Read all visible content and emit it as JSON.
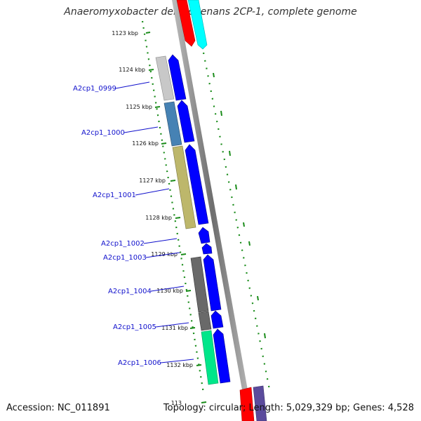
{
  "title": "Anaeromyxobacter dehalogenans 2CP-1, complete genome",
  "footer": {
    "accession": "Accession: NC_011891",
    "summary": "Topology: circular; Length: 5,029,329 bp; Genes: 4,528"
  },
  "ticks": [
    {
      "label": "1123 kbp"
    },
    {
      "label": "1124 kbp"
    },
    {
      "label": "1125 kbp"
    },
    {
      "label": "1126 kbp"
    },
    {
      "label": "1127 kbp"
    },
    {
      "label": "1128 kbp"
    },
    {
      "label": "1129 kbp"
    },
    {
      "label": "1130 kbp"
    },
    {
      "label": "1131 kbp"
    },
    {
      "label": "1132 kbp"
    },
    {
      "label": "113"
    }
  ],
  "genes": [
    {
      "name": "A2cp1_0999",
      "cog_color": "#c8c8c8"
    },
    {
      "name": "A2cp1_1000",
      "cog_color": "#4682b4"
    },
    {
      "name": "A2cp1_1001",
      "cog_color": "#bdb76b"
    },
    {
      "name": "A2cp1_1002",
      "cog_color": ""
    },
    {
      "name": "A2cp1_1003",
      "cog_color": ""
    },
    {
      "name": "A2cp1_1004",
      "cog_color": "#696969"
    },
    {
      "name": "A2cp1_1005",
      "cog_color": "#696969"
    },
    {
      "name": "A2cp1_1006",
      "cog_color": "#00e68a"
    }
  ],
  "colors": {
    "cds_forward": "#0000ff",
    "backbone": "#7a7a7a",
    "gc_dots": "#1a8c1a",
    "red_feature": "#ff0000",
    "cyan_feature": "#00ffff",
    "purple_feature": "#5b4b9c"
  }
}
